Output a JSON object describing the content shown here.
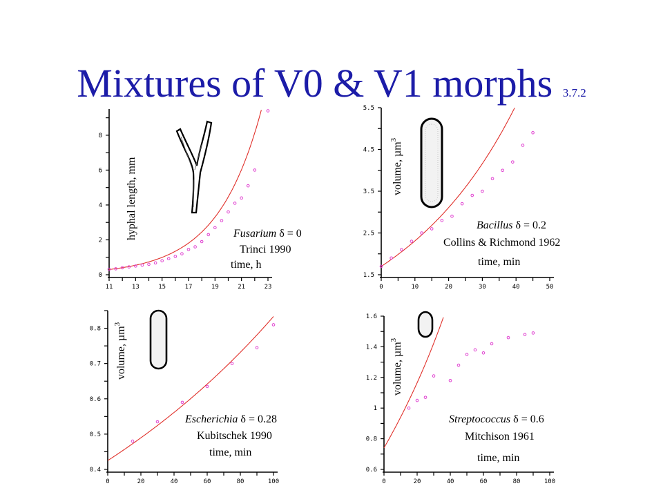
{
  "title": {
    "main": "Mixtures of V0 & V1 morphs",
    "sub": "3.7.2"
  },
  "chart_data": [
    {
      "id": "fusarium",
      "type": "scatter",
      "xlim": [
        11,
        23
      ],
      "ylim": [
        0,
        9.5
      ],
      "xticks": [
        "11",
        "13",
        "15",
        "17",
        "19",
        "21",
        "23"
      ],
      "yticks": [
        "0",
        "2",
        "4",
        "6",
        "8"
      ],
      "ylabel": "hyphal length, mm",
      "xlabel": "time, h",
      "organism": "Fusarium",
      "delta_label": " δ = 0",
      "reference": "Trinci 1990",
      "fit": {
        "model": "mixed",
        "d": 0.0,
        "a": 0.3,
        "k": 0.3,
        "x0": 11
      },
      "x": [
        11.0,
        11.5,
        12.0,
        12.5,
        13.0,
        13.5,
        14.0,
        14.5,
        15.0,
        15.5,
        16.0,
        16.5,
        17.0,
        17.5,
        18.0,
        18.5,
        19.0,
        19.5,
        20.0,
        20.5,
        21.0,
        21.5,
        22.0,
        23.0
      ],
      "y": [
        0.31,
        0.34,
        0.4,
        0.45,
        0.5,
        0.55,
        0.6,
        0.68,
        0.8,
        0.92,
        1.05,
        1.2,
        1.45,
        1.6,
        1.9,
        2.3,
        2.7,
        3.1,
        3.6,
        4.1,
        4.4,
        5.1,
        6.0,
        9.4
      ]
    },
    {
      "id": "bacillus",
      "type": "scatter",
      "xlim": [
        0,
        50
      ],
      "ylim": [
        1.5,
        5.5
      ],
      "xticks": [
        "0",
        "10",
        "20",
        "30",
        "40",
        "50"
      ],
      "yticks": [
        "1.5",
        "2.5",
        "3.5",
        "4.5",
        "5.5"
      ],
      "ylabel": "volume, µm",
      "ylabel_sup": "3",
      "xlabel": "time, min",
      "organism": "Bacillus",
      "delta_label": " δ = 0.2",
      "reference": "Collins & Richmond 1962",
      "fit": {
        "model": "mixed",
        "d": 0.2,
        "a": 1.7,
        "k": 0.0315,
        "x0": 0
      },
      "x": [
        0,
        3,
        6,
        9,
        12,
        15,
        18,
        21,
        24,
        27,
        30,
        33,
        36,
        39,
        42,
        45
      ],
      "y": [
        1.7,
        1.9,
        2.1,
        2.3,
        2.5,
        2.6,
        2.8,
        2.9,
        3.2,
        3.4,
        3.5,
        3.8,
        4.0,
        4.2,
        4.6,
        4.9
      ]
    },
    {
      "id": "escherichia",
      "type": "scatter",
      "xlim": [
        0,
        100
      ],
      "ylim": [
        0.4,
        0.85
      ],
      "xticks": [
        "0",
        "20",
        "40",
        "60",
        "80",
        "100"
      ],
      "yticks": [
        "0.4",
        "0.5",
        "0.6",
        "0.7",
        "0.8"
      ],
      "ylabel": "volume, µm",
      "ylabel_sup": "3",
      "xlabel": "time, min",
      "organism": "Escherichia",
      "delta_label": " δ = 0.28",
      "reference": "Kubitschek 1990",
      "fit": {
        "model": "mixed",
        "d": 0.28,
        "a": 0.425,
        "k": 0.0072,
        "x0": 0
      },
      "x": [
        15,
        30,
        45,
        60,
        75,
        90,
        100
      ],
      "y": [
        0.48,
        0.535,
        0.59,
        0.635,
        0.7,
        0.745,
        0.81
      ]
    },
    {
      "id": "streptococcus",
      "type": "scatter",
      "xlim": [
        0,
        100
      ],
      "ylim": [
        0.6,
        1.6
      ],
      "xticks": [
        "0",
        "20",
        "40",
        "60",
        "80",
        "100"
      ],
      "yticks": [
        "0.6",
        "0.8",
        "1",
        "1.2",
        "1.4",
        "1.6"
      ],
      "ylabel": "volume, µm",
      "ylabel_sup": "3",
      "xlabel": "time, min",
      "organism": "Streptococcus",
      "delta_label": " δ = 0.6",
      "reference": "Mitchison 1961",
      "fit": {
        "model": "mixed",
        "d": 0.6,
        "a": 0.74,
        "k": 0.0256,
        "x0": 0
      },
      "x": [
        15,
        20,
        25,
        30,
        40,
        45,
        50,
        55,
        60,
        65,
        75,
        85,
        90
      ],
      "y": [
        1.0,
        1.05,
        1.07,
        1.21,
        1.18,
        1.28,
        1.35,
        1.38,
        1.36,
        1.42,
        1.46,
        1.48,
        1.49
      ]
    }
  ]
}
